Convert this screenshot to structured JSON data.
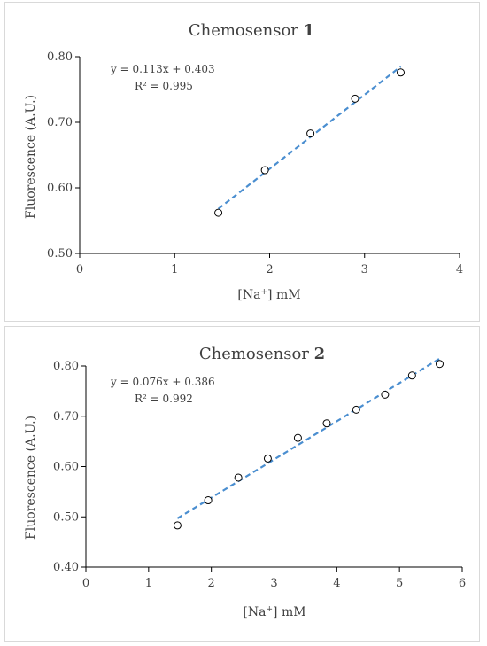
{
  "chart_data": [
    {
      "type": "scatter",
      "title_text": "Chemosensor ",
      "title_num": "1",
      "xlabel_pre": "[Na",
      "xlabel_sup": "+",
      "xlabel_post": "] mM",
      "ylabel": "Fluorescence (A.U.)",
      "xlim": [
        0,
        4
      ],
      "ylim": [
        0.5,
        0.8
      ],
      "xticks": [
        "0",
        "1",
        "2",
        "3",
        "4"
      ],
      "yticks": [
        "0.50",
        "0.60",
        "0.70",
        "0.80"
      ],
      "trendline": {
        "slope": 0.113,
        "intercept": 0.403,
        "x_range": [
          1.46,
          3.38
        ],
        "color": "#4a8ed0"
      },
      "equation": "y = 0.113x + 0.403",
      "r_squared": "R² = 0.995",
      "series": [
        {
          "x": [
            1.46,
            1.95,
            2.43,
            2.9,
            3.38
          ],
          "y": [
            0.562,
            0.627,
            0.683,
            0.736,
            0.776
          ]
        }
      ]
    },
    {
      "type": "scatter",
      "title_text": "Chemosensor ",
      "title_num": "2",
      "xlabel_pre": "[Na",
      "xlabel_sup": "+",
      "xlabel_post": "] mM",
      "ylabel": "Fluorescence  (A.U.)",
      "xlim": [
        0,
        6
      ],
      "ylim": [
        0.4,
        0.8
      ],
      "xticks": [
        "0",
        "1",
        "2",
        "3",
        "4",
        "5",
        "6"
      ],
      "yticks": [
        "0.40",
        "0.50",
        "0.60",
        "0.70",
        "0.80"
      ],
      "trendline": {
        "slope": 0.076,
        "intercept": 0.386,
        "x_range": [
          1.46,
          5.64
        ],
        "color": "#4a8ed0"
      },
      "equation": "y = 0.076x + 0.386",
      "r_squared": "R² = 0.992",
      "series": [
        {
          "x": [
            1.46,
            1.95,
            2.43,
            2.9,
            3.38,
            3.84,
            4.31,
            4.77,
            5.2,
            5.64
          ],
          "y": [
            0.483,
            0.533,
            0.578,
            0.616,
            0.657,
            0.686,
            0.713,
            0.743,
            0.781,
            0.804
          ]
        }
      ]
    }
  ]
}
